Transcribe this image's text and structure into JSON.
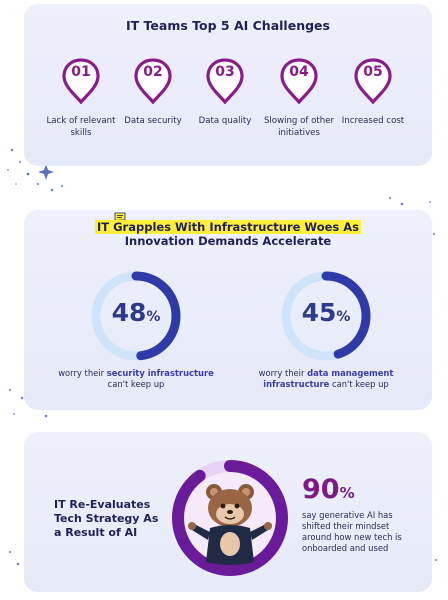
{
  "challenges": {
    "title": "IT Teams Top 5 AI Challenges",
    "items": [
      {
        "num": "01",
        "label": "Lack of relevant skills"
      },
      {
        "num": "02",
        "label": "Data security"
      },
      {
        "num": "03",
        "label": "Data quality"
      },
      {
        "num": "04",
        "label": "Slowing of other initiatives"
      },
      {
        "num": "05",
        "label": "Increased cost"
      }
    ]
  },
  "infra": {
    "title_line1": "IT Grapples With Infrastructure Woes As",
    "title_line2": "Innovation Demands Accelerate",
    "stats": [
      {
        "value": "48",
        "unit": "%",
        "fraction": 0.48,
        "cap_pre": "worry their ",
        "cap_bold": "security infrastructure",
        "cap_post": " can't keep up"
      },
      {
        "value": "45",
        "unit": "%",
        "fraction": 0.45,
        "cap_pre": "worry their ",
        "cap_bold": "data management infrastructure",
        "cap_post": " can't keep up"
      }
    ]
  },
  "reevaluate": {
    "heading": "IT Re-Evaluates Tech Strategy As a Result of AI",
    "value": "90",
    "unit": "%",
    "fraction": 0.9,
    "caption": "say generative AI has shifted their mindset around how new tech is onboarded and used"
  },
  "colors": {
    "pin": "#8b1a8b",
    "ring_fill": "#2e3aa8",
    "ring_track": "#cfe4fb",
    "big_ring": "#6a1b9a",
    "highlight": "#ffef3a"
  }
}
